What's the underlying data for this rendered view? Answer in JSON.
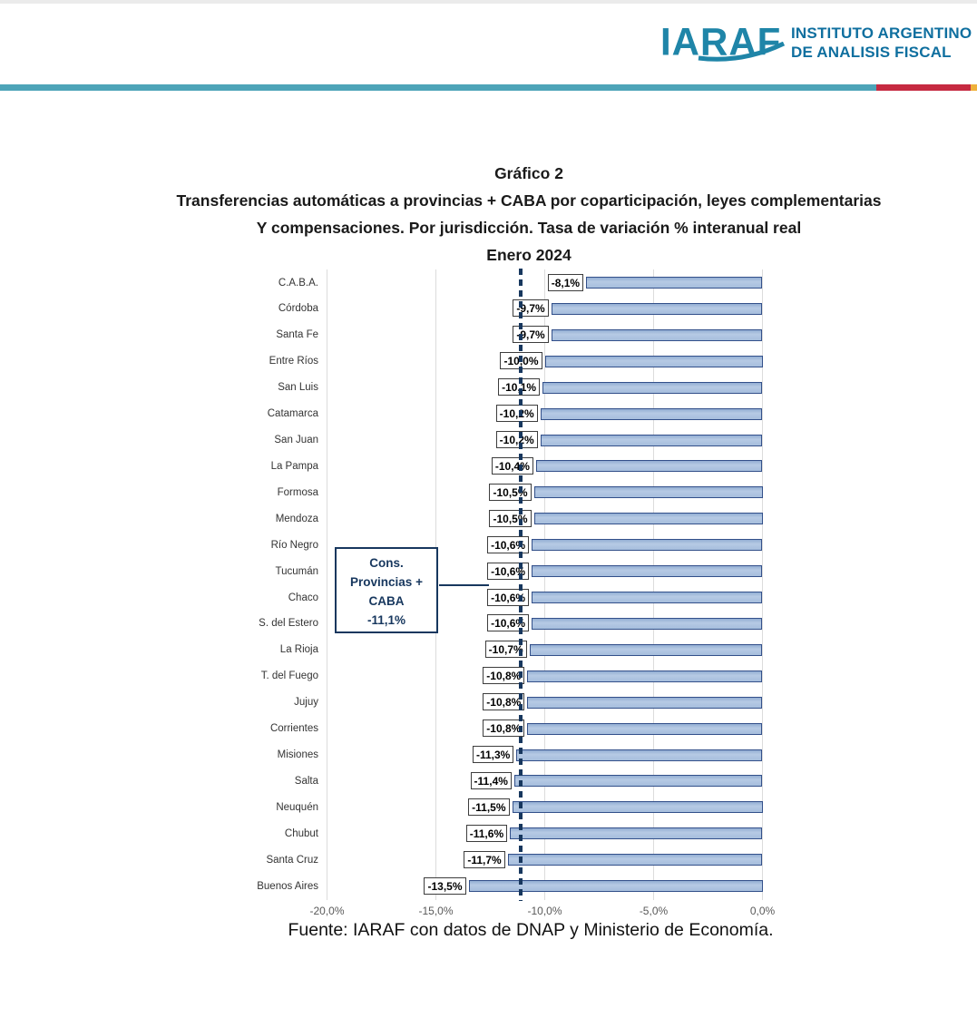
{
  "header": {
    "logo_text": "IARAF",
    "org_line1": "INSTITUTO ARGENTINO",
    "org_line2": "DE ANALISIS FISCAL"
  },
  "divider_colors": {
    "teal": "#4da4b8",
    "red": "#c62a41",
    "yellow": "#efb13a"
  },
  "title": {
    "line1": "Gráfico 2",
    "line2": "Transferencias automáticas a provincias + CABA por coparticipación, leyes complementarias",
    "line3": "Y compensaciones. Por jurisdicción. Tasa de variación % interanual real",
    "line4": "Enero 2024"
  },
  "chart_data": {
    "type": "bar",
    "orientation": "horizontal",
    "title": "Transferencias automáticas a provincias + CABA. Tasa de variación % interanual real. Enero 2024",
    "categories": [
      "C.A.B.A.",
      "Córdoba",
      "Santa Fe",
      "Entre Ríos",
      "San Luis",
      "Catamarca",
      "San Juan",
      "La Pampa",
      "Formosa",
      "Mendoza",
      "Río Negro",
      "Tucumán",
      "Chaco",
      "S. del Estero",
      "La Rioja",
      "T. del Fuego",
      "Jujuy",
      "Corrientes",
      "Misiones",
      "Salta",
      "Neuquén",
      "Chubut",
      "Santa Cruz",
      "Buenos Aires"
    ],
    "values": [
      -8.1,
      -9.7,
      -9.7,
      -10.0,
      -10.1,
      -10.2,
      -10.2,
      -10.4,
      -10.5,
      -10.5,
      -10.6,
      -10.6,
      -10.6,
      -10.6,
      -10.7,
      -10.8,
      -10.8,
      -10.8,
      -11.3,
      -11.4,
      -11.5,
      -11.6,
      -11.7,
      -13.5
    ],
    "value_labels": [
      "-8,1%",
      "-9,7%",
      "-9,7%",
      "-10,0%",
      "-10,1%",
      "-10,2%",
      "-10,2%",
      "-10,4%",
      "-10,5%",
      "-10,5%",
      "-10,6%",
      "-10,6%",
      "-10,6%",
      "-10,6%",
      "-10,7%",
      "-10,8%",
      "-10,8%",
      "-10,8%",
      "-11,3%",
      "-11,4%",
      "-11,5%",
      "-11,6%",
      "-11,7%",
      "-13,5%"
    ],
    "xlim": [
      -20,
      0
    ],
    "x_ticks": {
      "values": [
        -20,
        -15,
        -10,
        -5,
        0
      ],
      "labels": [
        "-20,0%",
        "-15,0%",
        "-10,0%",
        "-5,0%",
        "0,0%"
      ]
    },
    "grid": true,
    "legend": "none",
    "bar_fill": "#a9c1de",
    "bar_border": "#33508a",
    "reference_line": {
      "value": -11.1,
      "color": "#17375e",
      "style": "dashed",
      "annotation_lines": [
        "Cons.",
        "Provincias +",
        "CABA",
        "-11,1%"
      ]
    }
  },
  "source": "Fuente: IARAF con datos de DNAP y Ministerio de Economía."
}
